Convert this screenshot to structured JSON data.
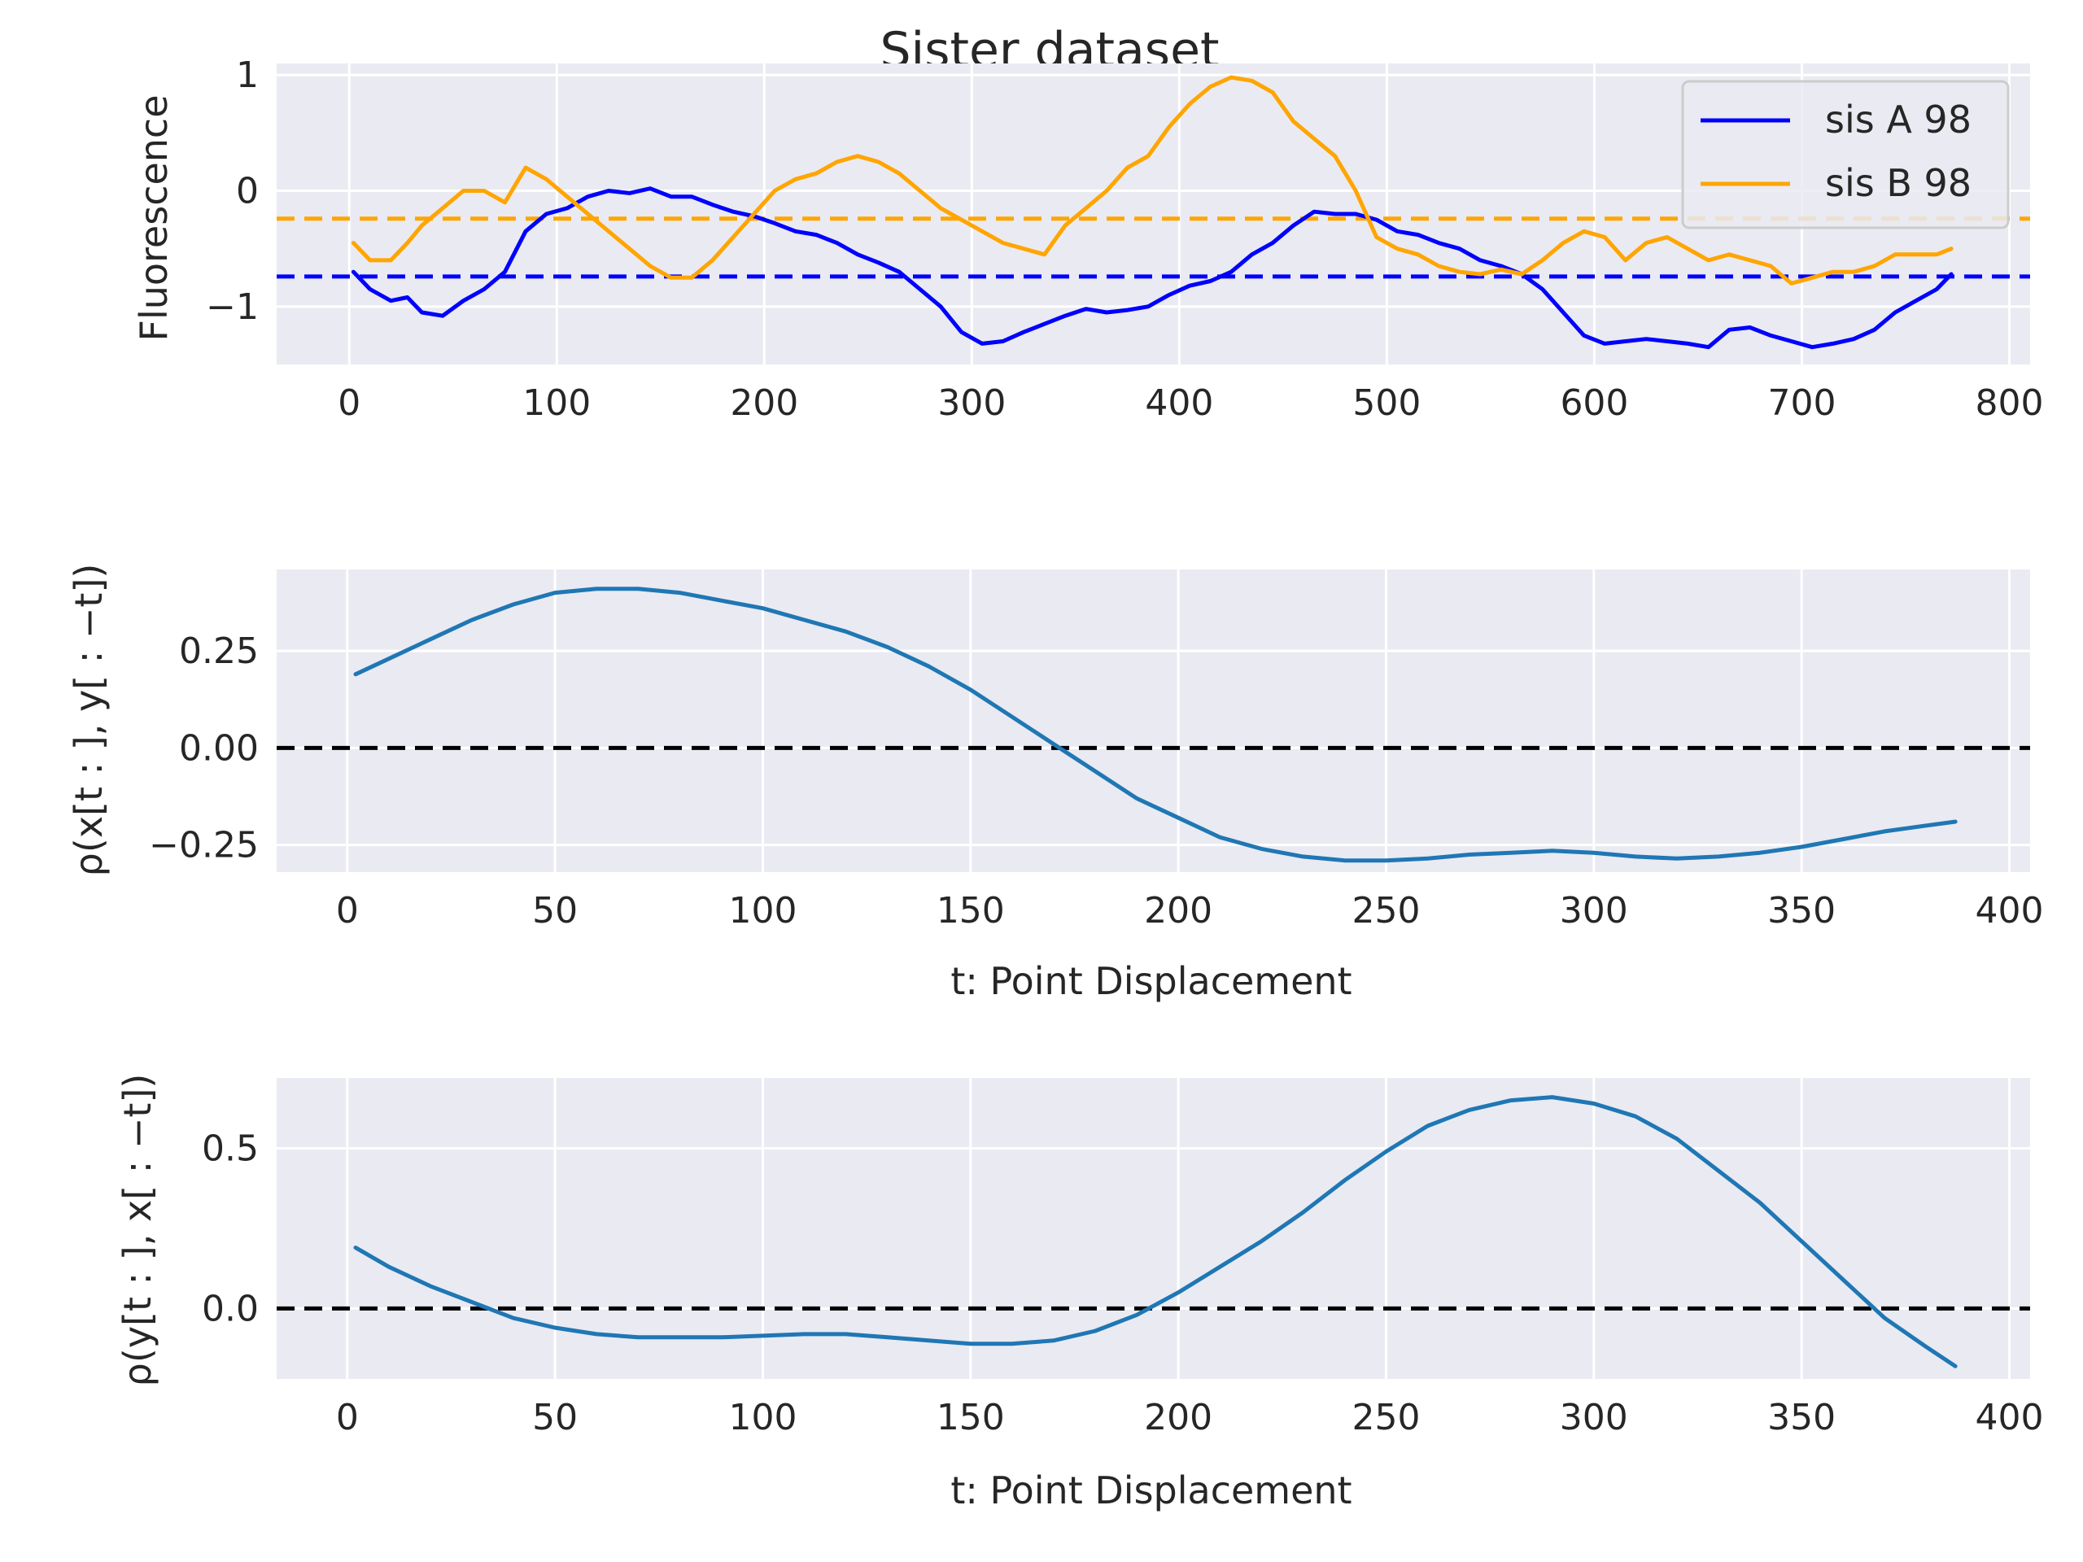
{
  "chart_data": [
    {
      "type": "line",
      "title": "Sister dataset",
      "xlabel": "",
      "ylabel": "Fluorescence",
      "xlim": [
        -35,
        810
      ],
      "ylim": [
        -1.5,
        1.1
      ],
      "xticks": [
        0,
        100,
        200,
        300,
        400,
        500,
        600,
        700,
        800
      ],
      "yticks": [
        -1,
        0,
        1
      ],
      "ytick_labels": [
        "−1",
        "0",
        "1"
      ],
      "grid": true,
      "legend": "top-right",
      "series": [
        {
          "name": "sis A 98",
          "color": "#0000ff",
          "x": [
            2,
            10,
            20,
            28,
            35,
            45,
            55,
            65,
            75,
            85,
            95,
            105,
            115,
            125,
            135,
            145,
            155,
            165,
            175,
            185,
            195,
            205,
            215,
            225,
            235,
            245,
            255,
            265,
            275,
            285,
            295,
            305,
            315,
            325,
            335,
            345,
            355,
            365,
            375,
            385,
            395,
            405,
            415,
            425,
            435,
            445,
            455,
            465,
            475,
            485,
            495,
            505,
            515,
            525,
            535,
            545,
            555,
            565,
            575,
            585,
            595,
            605,
            615,
            625,
            635,
            645,
            655,
            665,
            675,
            685,
            695,
            705,
            715,
            725,
            735,
            745,
            755,
            765,
            772
          ],
          "y": [
            -0.7,
            -0.85,
            -0.95,
            -0.92,
            -1.05,
            -1.08,
            -0.95,
            -0.85,
            -0.7,
            -0.35,
            -0.2,
            -0.15,
            -0.05,
            0.0,
            -0.02,
            0.02,
            -0.05,
            -0.05,
            -0.12,
            -0.18,
            -0.22,
            -0.28,
            -0.35,
            -0.38,
            -0.45,
            -0.55,
            -0.62,
            -0.7,
            -0.85,
            -1.0,
            -1.22,
            -1.32,
            -1.3,
            -1.22,
            -1.15,
            -1.08,
            -1.02,
            -1.05,
            -1.03,
            -1.0,
            -0.9,
            -0.82,
            -0.78,
            -0.7,
            -0.55,
            -0.45,
            -0.3,
            -0.18,
            -0.2,
            -0.2,
            -0.25,
            -0.35,
            -0.38,
            -0.45,
            -0.5,
            -0.6,
            -0.65,
            -0.72,
            -0.85,
            -1.05,
            -1.25,
            -1.32,
            -1.3,
            -1.28,
            -1.3,
            -1.32,
            -1.35,
            -1.2,
            -1.18,
            -1.25,
            -1.3,
            -1.35,
            -1.32,
            -1.28,
            -1.2,
            -1.05,
            -0.95,
            -0.85,
            -0.72
          ]
        },
        {
          "name": "sis B 98",
          "color": "#ffa500",
          "x": [
            2,
            10,
            20,
            28,
            35,
            45,
            55,
            65,
            75,
            85,
            95,
            105,
            115,
            125,
            135,
            145,
            155,
            165,
            175,
            185,
            195,
            205,
            215,
            225,
            235,
            245,
            255,
            265,
            275,
            285,
            295,
            305,
            315,
            325,
            335,
            345,
            355,
            365,
            375,
            385,
            395,
            405,
            415,
            425,
            435,
            445,
            455,
            465,
            475,
            485,
            495,
            505,
            515,
            525,
            535,
            545,
            555,
            565,
            575,
            585,
            595,
            605,
            615,
            625,
            635,
            645,
            655,
            665,
            675,
            685,
            695,
            705,
            715,
            725,
            735,
            745,
            755,
            765,
            772
          ],
          "y": [
            -0.45,
            -0.6,
            -0.6,
            -0.45,
            -0.3,
            -0.15,
            0.0,
            0.0,
            -0.1,
            0.2,
            0.1,
            -0.05,
            -0.2,
            -0.35,
            -0.5,
            -0.65,
            -0.75,
            -0.75,
            -0.6,
            -0.4,
            -0.2,
            0.0,
            0.1,
            0.15,
            0.25,
            0.3,
            0.25,
            0.15,
            0.0,
            -0.15,
            -0.25,
            -0.35,
            -0.45,
            -0.5,
            -0.55,
            -0.3,
            -0.15,
            0.0,
            0.2,
            0.3,
            0.55,
            0.75,
            0.9,
            0.98,
            0.95,
            0.85,
            0.6,
            0.45,
            0.3,
            0.0,
            -0.4,
            -0.5,
            -0.55,
            -0.65,
            -0.7,
            -0.72,
            -0.68,
            -0.72,
            -0.6,
            -0.45,
            -0.35,
            -0.4,
            -0.6,
            -0.45,
            -0.4,
            -0.5,
            -0.6,
            -0.55,
            -0.6,
            -0.65,
            -0.8,
            -0.75,
            -0.7,
            -0.7,
            -0.65,
            -0.55,
            -0.55,
            -0.55,
            -0.5
          ]
        }
      ],
      "hlines": [
        {
          "y": -0.24,
          "color": "#ffa500",
          "style": "dashed"
        },
        {
          "y": -0.74,
          "color": "#0000ff",
          "style": "dashed"
        }
      ]
    },
    {
      "type": "line",
      "title": "",
      "xlabel": "t: Point Displacement",
      "ylabel": "ρ(x[t : ], y[ : −t])",
      "xlim": [
        -17,
        405
      ],
      "ylim": [
        -0.32,
        0.46
      ],
      "xticks": [
        0,
        50,
        100,
        150,
        200,
        250,
        300,
        350,
        400
      ],
      "yticks": [
        -0.25,
        0.0,
        0.25
      ],
      "ytick_labels": [
        "−0.25",
        "0.00",
        "0.25"
      ],
      "grid": true,
      "series": [
        {
          "color": "#1f77b4",
          "x": [
            2,
            10,
            20,
            30,
            40,
            50,
            60,
            70,
            80,
            90,
            100,
            110,
            120,
            130,
            140,
            150,
            160,
            170,
            180,
            190,
            200,
            210,
            220,
            230,
            240,
            250,
            260,
            270,
            280,
            290,
            300,
            310,
            320,
            330,
            340,
            350,
            360,
            370,
            380,
            387
          ],
          "y": [
            0.19,
            0.23,
            0.28,
            0.33,
            0.37,
            0.4,
            0.41,
            0.41,
            0.4,
            0.38,
            0.36,
            0.33,
            0.3,
            0.26,
            0.21,
            0.15,
            0.08,
            0.01,
            -0.06,
            -0.13,
            -0.18,
            -0.23,
            -0.26,
            -0.28,
            -0.29,
            -0.29,
            -0.285,
            -0.275,
            -0.27,
            -0.265,
            -0.27,
            -0.28,
            -0.285,
            -0.28,
            -0.27,
            -0.255,
            -0.235,
            -0.215,
            -0.2,
            -0.19
          ]
        }
      ],
      "hlines": [
        {
          "y": 0.0,
          "color": "#000000",
          "style": "dashed"
        }
      ]
    },
    {
      "type": "line",
      "title": "",
      "xlabel": "t: Point Displacement",
      "ylabel": "ρ(y[t : ], x[ : −t])",
      "xlim": [
        -17,
        405
      ],
      "ylim": [
        -0.22,
        0.72
      ],
      "xticks": [
        0,
        50,
        100,
        150,
        200,
        250,
        300,
        350,
        400
      ],
      "yticks": [
        0.0,
        0.5
      ],
      "ytick_labels": [
        "0.0",
        "0.5"
      ],
      "grid": true,
      "series": [
        {
          "color": "#1f77b4",
          "x": [
            2,
            10,
            20,
            30,
            40,
            50,
            60,
            70,
            80,
            90,
            100,
            110,
            120,
            130,
            140,
            150,
            160,
            170,
            180,
            190,
            200,
            210,
            220,
            230,
            240,
            250,
            260,
            270,
            280,
            290,
            300,
            310,
            320,
            330,
            340,
            350,
            360,
            370,
            380,
            387
          ],
          "y": [
            0.19,
            0.13,
            0.07,
            0.02,
            -0.03,
            -0.06,
            -0.08,
            -0.09,
            -0.09,
            -0.09,
            -0.085,
            -0.08,
            -0.08,
            -0.09,
            -0.1,
            -0.11,
            -0.11,
            -0.1,
            -0.07,
            -0.02,
            0.05,
            0.13,
            0.21,
            0.3,
            0.4,
            0.49,
            0.57,
            0.62,
            0.65,
            0.66,
            0.64,
            0.6,
            0.53,
            0.43,
            0.33,
            0.21,
            0.09,
            -0.03,
            -0.12,
            -0.18
          ]
        }
      ],
      "hlines": [
        {
          "y": 0.0,
          "color": "#000000",
          "style": "dashed"
        }
      ]
    }
  ]
}
